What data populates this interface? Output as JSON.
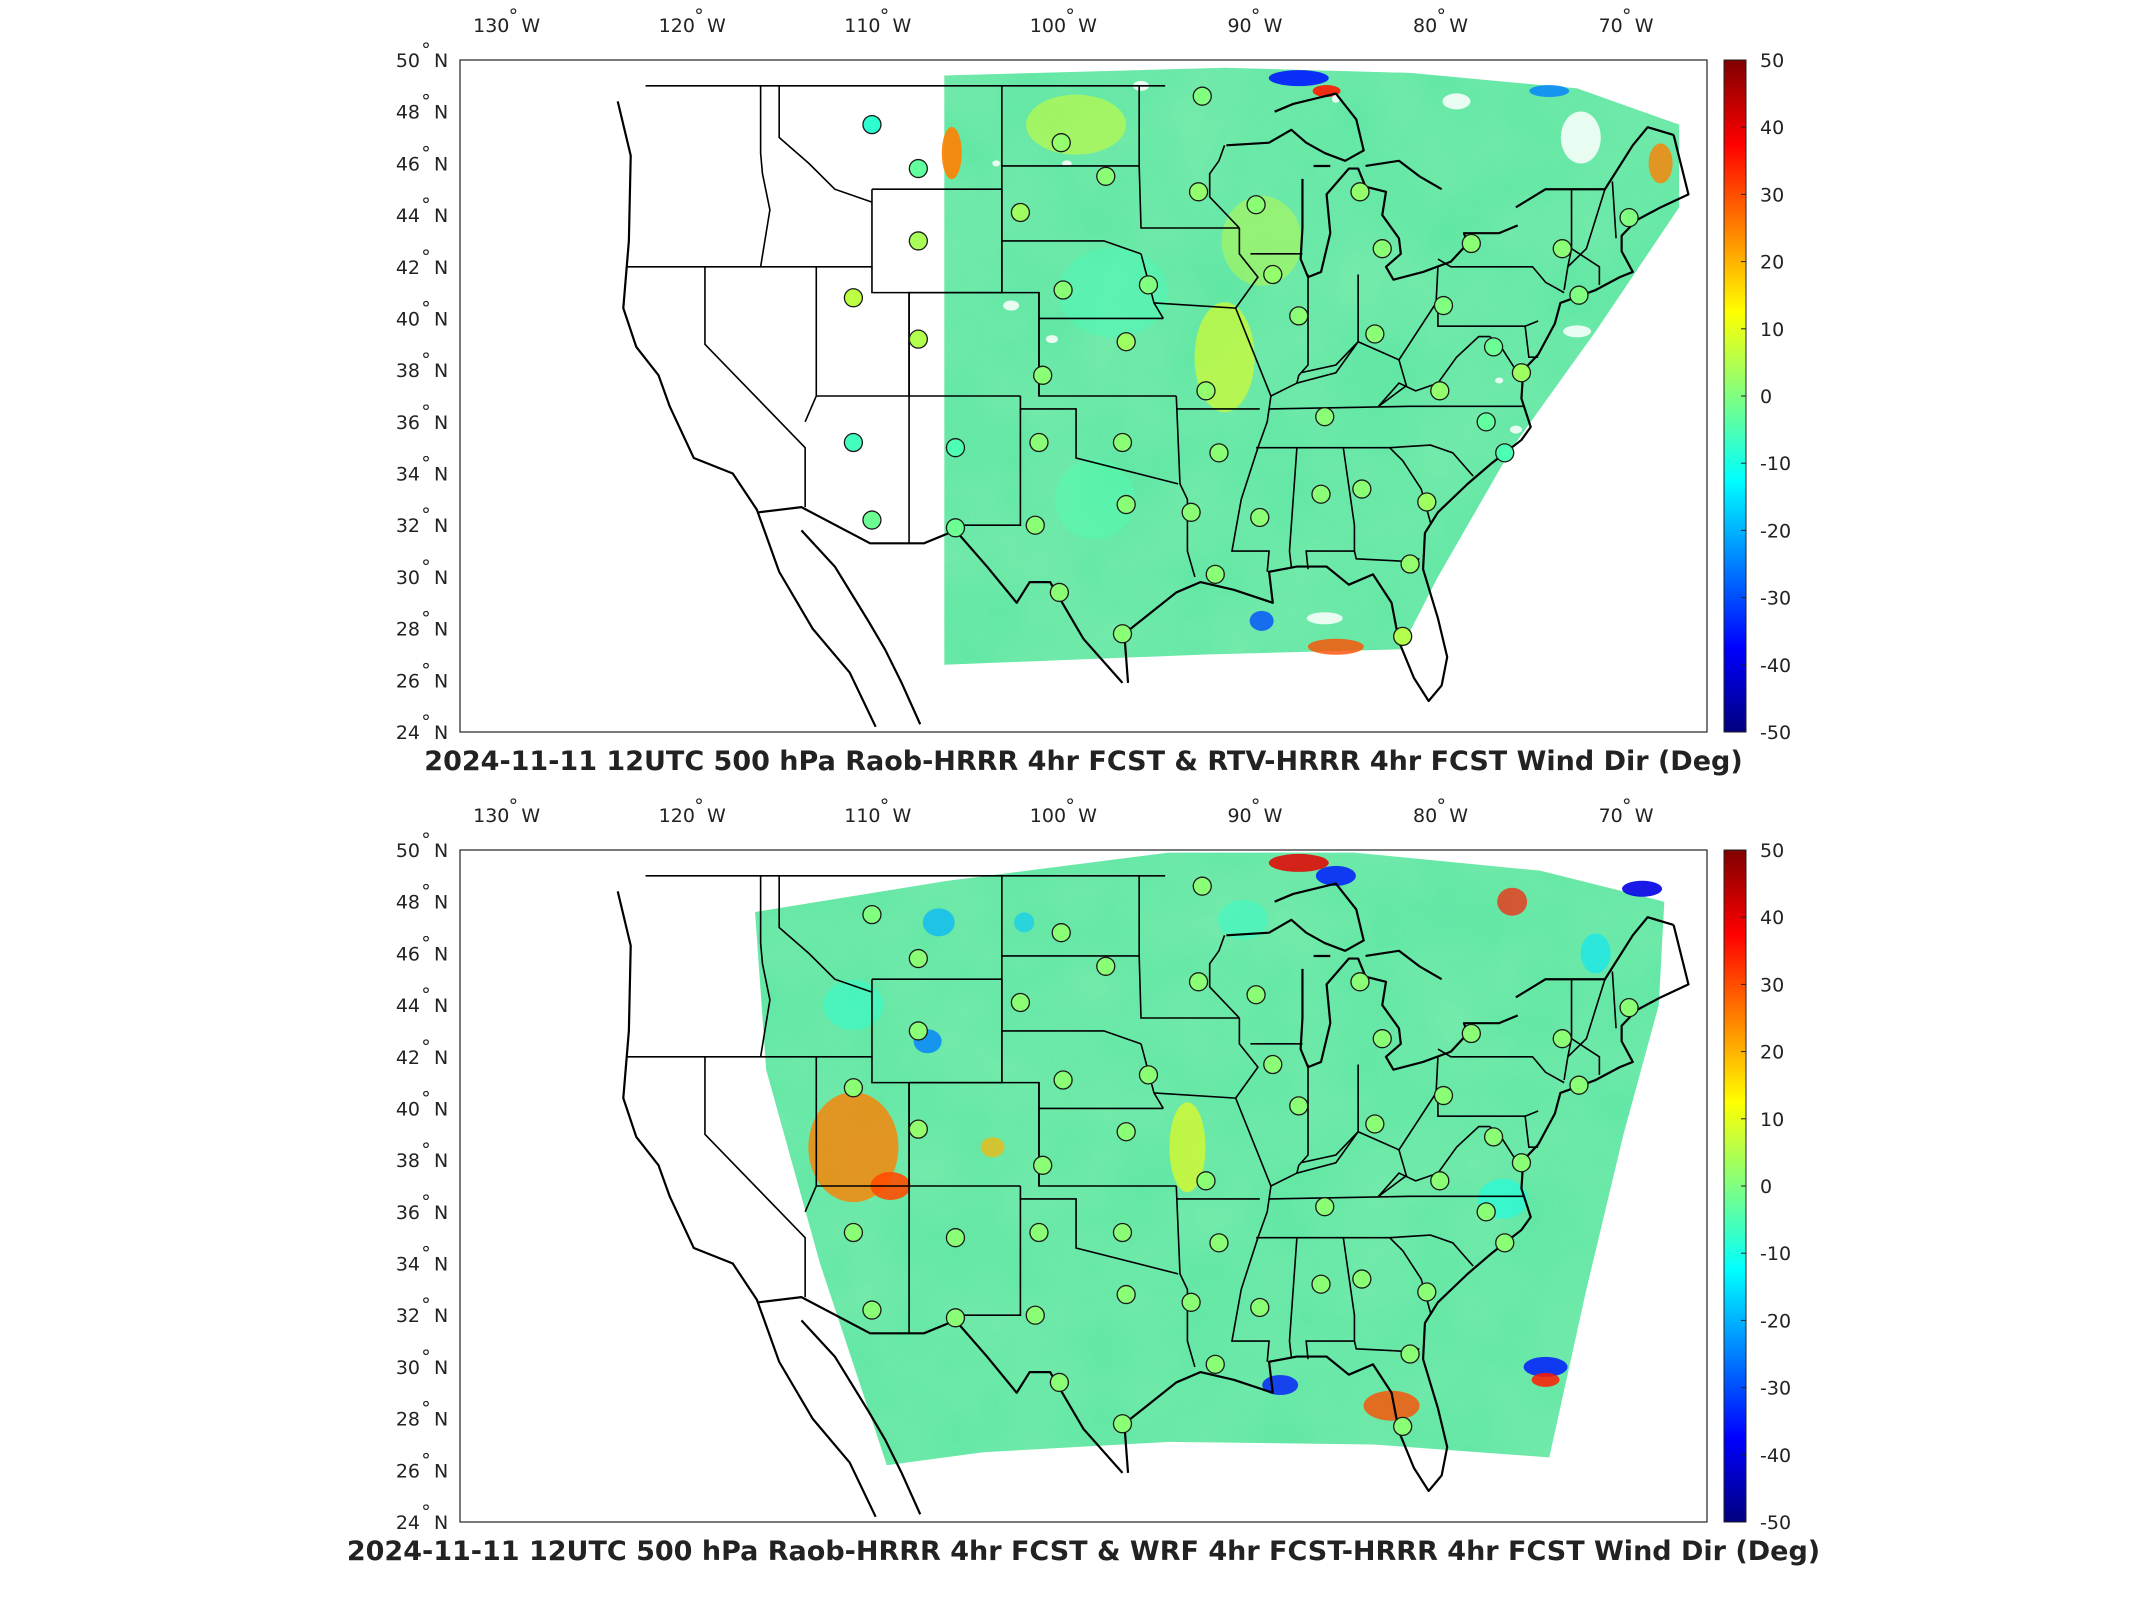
{
  "colorbar": {
    "min": -50,
    "max": 50,
    "ticks": [
      "50",
      "40",
      "30",
      "20",
      "10",
      "0",
      "-10",
      "-20",
      "-30",
      "-40",
      "-50"
    ],
    "colors": [
      "#00007f",
      "#0000ff",
      "#0080ff",
      "#00ffff",
      "#80ff80",
      "#ffff00",
      "#ff8000",
      "#ff0000",
      "#7f0000"
    ]
  },
  "axes": {
    "lon_ticks": [
      {
        "value": -130,
        "deg": "130",
        "hemi": "W"
      },
      {
        "value": -120,
        "deg": "120",
        "hemi": "W"
      },
      {
        "value": -110,
        "deg": "110",
        "hemi": "W"
      },
      {
        "value": -100,
        "deg": "100",
        "hemi": "W"
      },
      {
        "value": -90,
        "deg": "90",
        "hemi": "W"
      },
      {
        "value": -80,
        "deg": "80",
        "hemi": "W"
      },
      {
        "value": -70,
        "deg": "70",
        "hemi": "W"
      }
    ],
    "lat_ticks": [
      {
        "value": 50,
        "deg": "50",
        "hemi": "N"
      },
      {
        "value": 48,
        "deg": "48",
        "hemi": "N"
      },
      {
        "value": 46,
        "deg": "46",
        "hemi": "N"
      },
      {
        "value": 44,
        "deg": "44",
        "hemi": "N"
      },
      {
        "value": 42,
        "deg": "42",
        "hemi": "N"
      },
      {
        "value": 40,
        "deg": "40",
        "hemi": "N"
      },
      {
        "value": 38,
        "deg": "38",
        "hemi": "N"
      },
      {
        "value": 36,
        "deg": "36",
        "hemi": "N"
      },
      {
        "value": 34,
        "deg": "34",
        "hemi": "N"
      },
      {
        "value": 32,
        "deg": "32",
        "hemi": "N"
      },
      {
        "value": 30,
        "deg": "30",
        "hemi": "N"
      },
      {
        "value": 28,
        "deg": "28",
        "hemi": "N"
      },
      {
        "value": 26,
        "deg": "26",
        "hemi": "N"
      },
      {
        "value": 24,
        "deg": "24",
        "hemi": "N"
      }
    ]
  },
  "panels": [
    {
      "title": "2024-11-11 12UTC 500 hPa Raob-HRRR 4hr FCST & RTV-HRRR 4hr FCST Wind Dir (Deg)",
      "model": "RTV",
      "stations": [
        {
          "lon": -111.0,
          "lat": 47.5,
          "value": -8
        },
        {
          "lon": -108.5,
          "lat": 45.8,
          "value": -3
        },
        {
          "lon": -108.5,
          "lat": 43.0,
          "value": 4
        },
        {
          "lon": -112.0,
          "lat": 40.8,
          "value": 6
        },
        {
          "lon": -108.5,
          "lat": 39.2,
          "value": 5
        },
        {
          "lon": -112.0,
          "lat": 35.2,
          "value": -6
        },
        {
          "lon": -111.0,
          "lat": 32.2,
          "value": -2
        },
        {
          "lon": -106.5,
          "lat": 35.0,
          "value": -5
        },
        {
          "lon": -106.5,
          "lat": 31.9,
          "value": -2
        },
        {
          "lon": -100.8,
          "lat": 46.8,
          "value": 2
        },
        {
          "lon": -98.4,
          "lat": 45.5,
          "value": 1
        },
        {
          "lon": -103.0,
          "lat": 44.1,
          "value": 3
        },
        {
          "lon": -100.7,
          "lat": 41.1,
          "value": 1
        },
        {
          "lon": -96.1,
          "lat": 41.3,
          "value": 0
        },
        {
          "lon": -93.4,
          "lat": 44.9,
          "value": 2
        },
        {
          "lon": -93.2,
          "lat": 48.6,
          "value": 0
        },
        {
          "lon": -90.3,
          "lat": 44.4,
          "value": 1
        },
        {
          "lon": -84.7,
          "lat": 44.9,
          "value": 2
        },
        {
          "lon": -89.4,
          "lat": 41.7,
          "value": 2
        },
        {
          "lon": -88.0,
          "lat": 40.1,
          "value": 1
        },
        {
          "lon": -97.3,
          "lat": 39.1,
          "value": 3
        },
        {
          "lon": -101.8,
          "lat": 37.8,
          "value": 1
        },
        {
          "lon": -93.0,
          "lat": 37.2,
          "value": 2
        },
        {
          "lon": -86.6,
          "lat": 36.2,
          "value": 1
        },
        {
          "lon": -83.9,
          "lat": 39.4,
          "value": 1
        },
        {
          "lon": -80.2,
          "lat": 40.5,
          "value": 0
        },
        {
          "lon": -83.5,
          "lat": 42.7,
          "value": 1
        },
        {
          "lon": -78.7,
          "lat": 42.9,
          "value": 1
        },
        {
          "lon": -73.8,
          "lat": 42.7,
          "value": 1
        },
        {
          "lon": -70.2,
          "lat": 43.9,
          "value": 0
        },
        {
          "lon": -72.9,
          "lat": 40.9,
          "value": 0
        },
        {
          "lon": -77.5,
          "lat": 38.9,
          "value": -2
        },
        {
          "lon": -76.0,
          "lat": 37.9,
          "value": 3
        },
        {
          "lon": -80.4,
          "lat": 37.2,
          "value": 2
        },
        {
          "lon": -77.9,
          "lat": 36.0,
          "value": -3
        },
        {
          "lon": -76.9,
          "lat": 34.8,
          "value": -5
        },
        {
          "lon": -102.0,
          "lat": 35.2,
          "value": 1
        },
        {
          "lon": -97.5,
          "lat": 35.2,
          "value": 1
        },
        {
          "lon": -92.3,
          "lat": 34.8,
          "value": 1
        },
        {
          "lon": -97.3,
          "lat": 32.8,
          "value": 1
        },
        {
          "lon": -102.2,
          "lat": 32.0,
          "value": 1
        },
        {
          "lon": -93.8,
          "lat": 32.5,
          "value": 1
        },
        {
          "lon": -90.1,
          "lat": 32.3,
          "value": 1
        },
        {
          "lon": -86.8,
          "lat": 33.2,
          "value": 1
        },
        {
          "lon": -84.6,
          "lat": 33.4,
          "value": 1
        },
        {
          "lon": -81.1,
          "lat": 32.9,
          "value": 3
        },
        {
          "lon": -82.0,
          "lat": 30.5,
          "value": 2
        },
        {
          "lon": -100.9,
          "lat": 29.4,
          "value": 1
        },
        {
          "lon": -97.5,
          "lat": 27.8,
          "value": 1
        },
        {
          "lon": -92.5,
          "lat": 30.1,
          "value": 1
        },
        {
          "lon": -82.4,
          "lat": 27.7,
          "value": 5
        }
      ]
    },
    {
      "title": "2024-11-11 12UTC 500 hPa Raob-HRRR 4hr FCST & WRF 4hr FCST-HRRR 4hr FCST Wind Dir (Deg)",
      "model": "WRF",
      "stations": [
        {
          "lon": -111.0,
          "lat": 47.5,
          "value": 0
        },
        {
          "lon": -108.5,
          "lat": 45.8,
          "value": 1
        },
        {
          "lon": -108.5,
          "lat": 43.0,
          "value": 1
        },
        {
          "lon": -112.0,
          "lat": 40.8,
          "value": 1
        },
        {
          "lon": -108.5,
          "lat": 39.2,
          "value": 2
        },
        {
          "lon": -112.0,
          "lat": 35.2,
          "value": 1
        },
        {
          "lon": -111.0,
          "lat": 32.2,
          "value": 1
        },
        {
          "lon": -106.5,
          "lat": 35.0,
          "value": 1
        },
        {
          "lon": -106.5,
          "lat": 31.9,
          "value": 1
        },
        {
          "lon": -100.8,
          "lat": 46.8,
          "value": 1
        },
        {
          "lon": -98.4,
          "lat": 45.5,
          "value": 1
        },
        {
          "lon": -103.0,
          "lat": 44.1,
          "value": 1
        },
        {
          "lon": -100.7,
          "lat": 41.1,
          "value": 1
        },
        {
          "lon": -96.1,
          "lat": 41.3,
          "value": 1
        },
        {
          "lon": -93.4,
          "lat": 44.9,
          "value": 1
        },
        {
          "lon": -93.2,
          "lat": 48.6,
          "value": 1
        },
        {
          "lon": -90.3,
          "lat": 44.4,
          "value": 1
        },
        {
          "lon": -84.7,
          "lat": 44.9,
          "value": 1
        },
        {
          "lon": -89.4,
          "lat": 41.7,
          "value": 1
        },
        {
          "lon": -88.0,
          "lat": 40.1,
          "value": 1
        },
        {
          "lon": -97.3,
          "lat": 39.1,
          "value": 1
        },
        {
          "lon": -101.8,
          "lat": 37.8,
          "value": 1
        },
        {
          "lon": -93.0,
          "lat": 37.2,
          "value": 1
        },
        {
          "lon": -86.6,
          "lat": 36.2,
          "value": 1
        },
        {
          "lon": -83.9,
          "lat": 39.4,
          "value": 1
        },
        {
          "lon": -80.2,
          "lat": 40.5,
          "value": 1
        },
        {
          "lon": -83.5,
          "lat": 42.7,
          "value": 1
        },
        {
          "lon": -78.7,
          "lat": 42.9,
          "value": 1
        },
        {
          "lon": -73.8,
          "lat": 42.7,
          "value": 1
        },
        {
          "lon": -70.2,
          "lat": 43.9,
          "value": 1
        },
        {
          "lon": -72.9,
          "lat": 40.9,
          "value": 1
        },
        {
          "lon": -77.5,
          "lat": 38.9,
          "value": 1
        },
        {
          "lon": -76.0,
          "lat": 37.9,
          "value": 1
        },
        {
          "lon": -80.4,
          "lat": 37.2,
          "value": 1
        },
        {
          "lon": -77.9,
          "lat": 36.0,
          "value": 1
        },
        {
          "lon": -76.9,
          "lat": 34.8,
          "value": 1
        },
        {
          "lon": -102.0,
          "lat": 35.2,
          "value": 1
        },
        {
          "lon": -97.5,
          "lat": 35.2,
          "value": 1
        },
        {
          "lon": -92.3,
          "lat": 34.8,
          "value": 1
        },
        {
          "lon": -97.3,
          "lat": 32.8,
          "value": 1
        },
        {
          "lon": -102.2,
          "lat": 32.0,
          "value": 1
        },
        {
          "lon": -93.8,
          "lat": 32.5,
          "value": 1
        },
        {
          "lon": -90.1,
          "lat": 32.3,
          "value": 1
        },
        {
          "lon": -86.8,
          "lat": 33.2,
          "value": 1
        },
        {
          "lon": -84.6,
          "lat": 33.4,
          "value": 1
        },
        {
          "lon": -81.1,
          "lat": 32.9,
          "value": 1
        },
        {
          "lon": -82.0,
          "lat": 30.5,
          "value": 1
        },
        {
          "lon": -100.9,
          "lat": 29.4,
          "value": 1
        },
        {
          "lon": -97.5,
          "lat": 27.8,
          "value": 1
        },
        {
          "lon": -92.5,
          "lat": 30.1,
          "value": 1
        },
        {
          "lon": -82.4,
          "lat": 27.7,
          "value": 1
        }
      ]
    }
  ]
}
